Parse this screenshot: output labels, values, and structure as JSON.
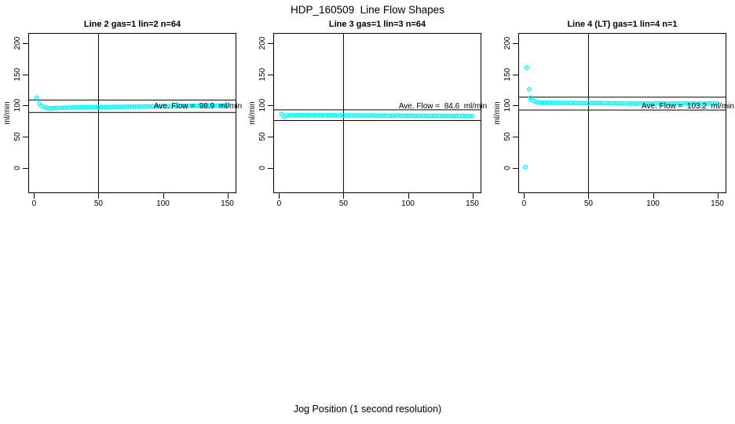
{
  "title": "HDP_160509  Line Flow Shapes",
  "xlabel": "Jog Position (1 second resolution)",
  "colors": {
    "points": "#00FFFF",
    "lines": "#000000",
    "background": "#FFFFFF"
  },
  "chart_data": [
    {
      "type": "scatter",
      "title": "Line 2 gas=1 lin=2 n=64",
      "ylabel": "ml/min",
      "annotation": "Ave. Flow =  98.9  ml/min",
      "ave_flow": 98.9,
      "ref_lines": [
        108.8,
        89.0
      ],
      "vline_x": 50,
      "x_ticks": [
        0,
        50,
        100,
        150
      ],
      "y_ticks": [
        0,
        50,
        100,
        150,
        200
      ],
      "xlim": [
        -4.5,
        157
      ],
      "ylim": [
        -40,
        216
      ],
      "grid": false,
      "points": [
        [
          2,
          112.5
        ],
        [
          4,
          103.0
        ],
        [
          6,
          99.2
        ],
        [
          8,
          97.2
        ],
        [
          10,
          96.2
        ],
        [
          12,
          95.8
        ],
        [
          14,
          95.7
        ],
        [
          16,
          96.0
        ],
        [
          18,
          96.2
        ],
        [
          20,
          96.4
        ],
        [
          22,
          96.3
        ],
        [
          24,
          96.7
        ],
        [
          26,
          96.5
        ],
        [
          28,
          96.9
        ],
        [
          30,
          96.8
        ],
        [
          32,
          97.1
        ],
        [
          34,
          96.9
        ],
        [
          36,
          97.3
        ],
        [
          38,
          97.0
        ],
        [
          40,
          97.4
        ],
        [
          42,
          97.2
        ],
        [
          44,
          97.5
        ],
        [
          46,
          97.3
        ],
        [
          48,
          97.6
        ],
        [
          50,
          97.4
        ],
        [
          52,
          97.7
        ],
        [
          54,
          97.5
        ],
        [
          56,
          97.9
        ],
        [
          58,
          97.6
        ],
        [
          60,
          98.0
        ],
        [
          62,
          97.7
        ],
        [
          64,
          98.1
        ],
        [
          66,
          97.8
        ],
        [
          68,
          98.2
        ],
        [
          70,
          97.9
        ],
        [
          72,
          98.3
        ],
        [
          74,
          98.0
        ],
        [
          76,
          98.4
        ],
        [
          78,
          98.1
        ],
        [
          80,
          98.5
        ],
        [
          82,
          98.2
        ],
        [
          84,
          98.6
        ],
        [
          86,
          98.3
        ],
        [
          88,
          98.7
        ],
        [
          90,
          98.4
        ],
        [
          92,
          98.8
        ],
        [
          94,
          98.5
        ],
        [
          96,
          98.9
        ],
        [
          98,
          98.6
        ],
        [
          100,
          99.0
        ],
        [
          102,
          98.7
        ],
        [
          104,
          99.1
        ],
        [
          106,
          98.8
        ],
        [
          108,
          99.2
        ],
        [
          110,
          98.9
        ],
        [
          112,
          99.3
        ],
        [
          114,
          99.0
        ],
        [
          116,
          99.4
        ],
        [
          118,
          99.1
        ],
        [
          120,
          99.5
        ],
        [
          122,
          99.2
        ],
        [
          124,
          99.6
        ],
        [
          126,
          99.3
        ],
        [
          128,
          99.7
        ],
        [
          130,
          99.4
        ],
        [
          132,
          99.8
        ],
        [
          134,
          99.5
        ],
        [
          136,
          99.9
        ],
        [
          138,
          99.6
        ],
        [
          140,
          100.0
        ],
        [
          142,
          99.7
        ],
        [
          144,
          100.1
        ],
        [
          146,
          99.8
        ],
        [
          148,
          100.2
        ],
        [
          150,
          99.9
        ]
      ]
    },
    {
      "type": "scatter",
      "title": "Line 3 gas=1 lin=3 n=64",
      "ylabel": "ml/min",
      "annotation": "Ave. Flow =  84.6  ml/min",
      "ave_flow": 84.6,
      "ref_lines": [
        93.1,
        76.1
      ],
      "vline_x": 50,
      "x_ticks": [
        0,
        50,
        100,
        150
      ],
      "y_ticks": [
        0,
        50,
        100,
        150,
        200
      ],
      "xlim": [
        -4.5,
        157
      ],
      "ylim": [
        -40,
        216
      ],
      "grid": false,
      "points": [
        [
          2,
          86.6
        ],
        [
          4,
          82.6
        ],
        [
          6,
          84.5
        ],
        [
          8,
          84.2
        ],
        [
          10,
          84.6
        ],
        [
          12,
          84.2
        ],
        [
          14,
          84.7
        ],
        [
          16,
          84.3
        ],
        [
          18,
          84.8
        ],
        [
          20,
          84.4
        ],
        [
          22,
          84.9
        ],
        [
          24,
          84.5
        ],
        [
          26,
          84.2
        ],
        [
          28,
          84.6
        ],
        [
          30,
          84.3
        ],
        [
          32,
          84.7
        ],
        [
          34,
          84.4
        ],
        [
          36,
          84.1
        ],
        [
          38,
          84.5
        ],
        [
          40,
          84.2
        ],
        [
          42,
          84.6
        ],
        [
          44,
          84.3
        ],
        [
          46,
          84.0
        ],
        [
          48,
          84.4
        ],
        [
          50,
          84.1
        ],
        [
          52,
          84.5
        ],
        [
          54,
          84.2
        ],
        [
          56,
          83.9
        ],
        [
          58,
          84.3
        ],
        [
          60,
          84.0
        ],
        [
          62,
          84.4
        ],
        [
          64,
          84.1
        ],
        [
          66,
          83.8
        ],
        [
          68,
          84.2
        ],
        [
          70,
          83.9
        ],
        [
          72,
          84.3
        ],
        [
          74,
          84.0
        ],
        [
          76,
          83.7
        ],
        [
          78,
          84.1
        ],
        [
          80,
          83.8
        ],
        [
          82,
          84.2
        ],
        [
          84,
          83.9
        ],
        [
          86,
          83.6
        ],
        [
          88,
          84.0
        ],
        [
          90,
          83.7
        ],
        [
          92,
          84.1
        ],
        [
          94,
          83.8
        ],
        [
          96,
          83.5
        ],
        [
          98,
          83.9
        ],
        [
          100,
          83.6
        ],
        [
          102,
          84.0
        ],
        [
          104,
          83.7
        ],
        [
          106,
          83.4
        ],
        [
          108,
          83.8
        ],
        [
          110,
          83.5
        ],
        [
          112,
          83.9
        ],
        [
          114,
          83.6
        ],
        [
          116,
          83.3
        ],
        [
          118,
          83.7
        ],
        [
          120,
          83.4
        ],
        [
          122,
          83.8
        ],
        [
          124,
          83.5
        ],
        [
          126,
          83.2
        ],
        [
          128,
          83.6
        ],
        [
          130,
          83.3
        ],
        [
          132,
          83.7
        ],
        [
          134,
          83.4
        ],
        [
          136,
          83.1
        ],
        [
          138,
          83.5
        ],
        [
          140,
          83.2
        ],
        [
          142,
          83.6
        ],
        [
          144,
          83.3
        ],
        [
          146,
          83.0
        ],
        [
          148,
          83.4
        ],
        [
          150,
          83.1
        ]
      ]
    },
    {
      "type": "scatter",
      "title": "Line 4 (LT) gas=1 lin=4 n=1",
      "ylabel": "ml/min",
      "annotation": "Ave. Flow =  103.2  ml/min",
      "ave_flow": 103.2,
      "ref_lines": [
        113.5,
        92.9
      ],
      "vline_x": 50,
      "x_ticks": [
        0,
        50,
        100,
        150
      ],
      "y_ticks": [
        0,
        50,
        100,
        150,
        200
      ],
      "xlim": [
        -4.5,
        157
      ],
      "ylim": [
        -40,
        216
      ],
      "grid": false,
      "points": [
        [
          1,
          1.8
        ],
        [
          2,
          160.5
        ],
        [
          4,
          126.0
        ],
        [
          5,
          112.5
        ],
        [
          6,
          109.0
        ],
        [
          8,
          106.8
        ],
        [
          10,
          105.6
        ],
        [
          12,
          105.0
        ],
        [
          14,
          104.6
        ],
        [
          16,
          104.9
        ],
        [
          18,
          104.4
        ],
        [
          20,
          104.7
        ],
        [
          22,
          104.3
        ],
        [
          24,
          104.6
        ],
        [
          26,
          104.2
        ],
        [
          28,
          104.5
        ],
        [
          30,
          104.1
        ],
        [
          32,
          104.4
        ],
        [
          34,
          104.0
        ],
        [
          36,
          104.3
        ],
        [
          38,
          103.9
        ],
        [
          40,
          104.2
        ],
        [
          42,
          103.8
        ],
        [
          44,
          104.1
        ],
        [
          46,
          103.7
        ],
        [
          48,
          104.0
        ],
        [
          50,
          103.6
        ],
        [
          52,
          104.2
        ],
        [
          54,
          103.8
        ],
        [
          56,
          104.1
        ],
        [
          58,
          103.7
        ],
        [
          60,
          104.0
        ],
        [
          62,
          103.6
        ],
        [
          64,
          103.9
        ],
        [
          66,
          103.5
        ],
        [
          68,
          103.8
        ],
        [
          70,
          103.4
        ],
        [
          72,
          103.7
        ],
        [
          74,
          103.3
        ],
        [
          76,
          103.6
        ],
        [
          78,
          103.2
        ],
        [
          80,
          103.5
        ],
        [
          82,
          103.1
        ],
        [
          84,
          103.4
        ],
        [
          86,
          103.0
        ],
        [
          88,
          103.3
        ],
        [
          90,
          103.6
        ],
        [
          92,
          103.2
        ],
        [
          94,
          103.5
        ],
        [
          96,
          103.1
        ],
        [
          98,
          103.4
        ],
        [
          100,
          103.0
        ],
        [
          102,
          103.3
        ],
        [
          104,
          103.6
        ],
        [
          106,
          103.2
        ],
        [
          108,
          103.5
        ],
        [
          110,
          103.1
        ],
        [
          112,
          103.4
        ],
        [
          114,
          103.0
        ],
        [
          116,
          103.3
        ],
        [
          118,
          103.6
        ],
        [
          120,
          103.2
        ],
        [
          122,
          103.5
        ],
        [
          124,
          103.1
        ],
        [
          126,
          103.4
        ],
        [
          128,
          103.0
        ],
        [
          130,
          103.3
        ],
        [
          132,
          103.6
        ],
        [
          134,
          103.2
        ],
        [
          136,
          103.5
        ],
        [
          138,
          103.1
        ],
        [
          140,
          103.4
        ],
        [
          142,
          103.0
        ],
        [
          144,
          103.3
        ],
        [
          146,
          103.6
        ],
        [
          148,
          103.2
        ],
        [
          150,
          103.5
        ]
      ]
    }
  ]
}
